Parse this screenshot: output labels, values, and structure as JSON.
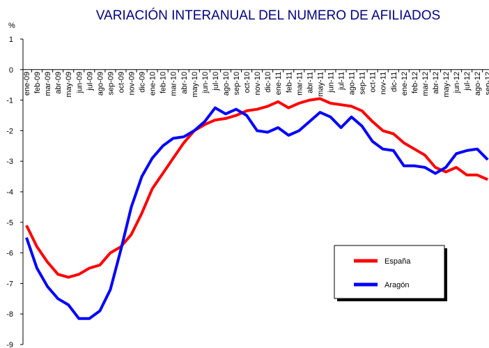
{
  "chart_data": {
    "type": "line",
    "title": "VARIACIÓN INTERANUAL DEL NUMERO DE AFILIADOS",
    "y_label": "%",
    "categories": [
      "ene-09",
      "feb-09",
      "mar-09",
      "abr-09",
      "may-09",
      "jun-09",
      "jul-09",
      "ago-09",
      "sep-09",
      "oct-09",
      "nov-09",
      "dic-09",
      "ene-10",
      "feb-10",
      "mar-10",
      "abr-10",
      "may-10",
      "jun-10",
      "jul-10",
      "ago-10",
      "sep-10",
      "oct-10",
      "nov-10",
      "dic-10",
      "ene-11",
      "feb-11",
      "mar-11",
      "abr-11",
      "may-11",
      "jun-11",
      "jul-11",
      "ago-11",
      "sep-11",
      "oct-11",
      "nov-11",
      "dic-11",
      "ene-12",
      "feb-12",
      "mar-12",
      "abr-12",
      "may-12",
      "jun-12",
      "jul-12",
      "ago-12",
      "sep-12"
    ],
    "series": [
      {
        "name": "España",
        "color": "#ff0000",
        "values": [
          -5.1,
          -5.8,
          -6.3,
          -6.7,
          -6.8,
          -6.7,
          -6.5,
          -6.4,
          -6.0,
          -5.8,
          -5.4,
          -4.7,
          -3.9,
          -3.4,
          -2.9,
          -2.4,
          -2.0,
          -1.8,
          -1.65,
          -1.6,
          -1.5,
          -1.35,
          -1.3,
          -1.2,
          -1.05,
          -1.25,
          -1.1,
          -1.0,
          -0.95,
          -1.1,
          -1.15,
          -1.2,
          -1.35,
          -1.7,
          -2.0,
          -2.1,
          -2.4,
          -2.6,
          -2.8,
          -3.2,
          -3.35,
          -3.2,
          -3.45,
          -3.45,
          -3.6
        ]
      },
      {
        "name": "Aragón",
        "color": "#0000ff",
        "values": [
          -5.5,
          -6.5,
          -7.1,
          -7.5,
          -7.7,
          -8.15,
          -8.15,
          -7.9,
          -7.2,
          -5.9,
          -4.5,
          -3.5,
          -2.9,
          -2.5,
          -2.25,
          -2.2,
          -2.0,
          -1.7,
          -1.25,
          -1.45,
          -1.3,
          -1.5,
          -2.0,
          -2.05,
          -1.9,
          -2.15,
          -2.0,
          -1.7,
          -1.4,
          -1.55,
          -1.9,
          -1.55,
          -1.85,
          -2.35,
          -2.6,
          -2.65,
          -3.15,
          -3.15,
          -3.2,
          -3.4,
          -3.2,
          -2.75,
          -2.65,
          -2.6,
          -2.95
        ]
      }
    ],
    "ylim": [
      -9,
      1
    ],
    "yticks": [
      1,
      0,
      -1,
      -2,
      -3,
      -4,
      -5,
      -6,
      -7,
      -8,
      -9
    ],
    "legend": "lower-right"
  }
}
